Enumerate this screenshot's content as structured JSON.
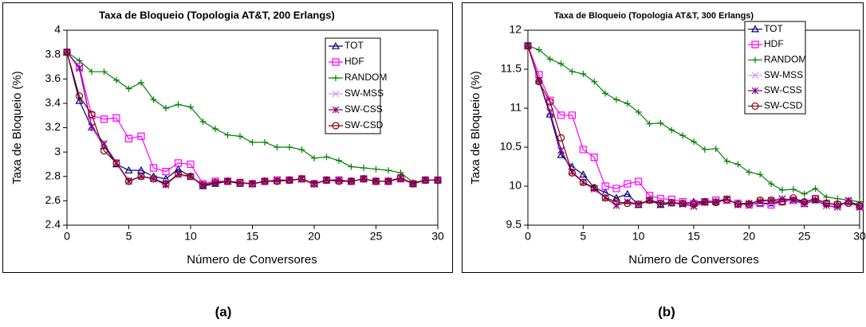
{
  "chart_data": [
    {
      "type": "line",
      "title": "Taxa de Bloqueio (Topologia AT&T, 200 Erlangs)",
      "xlabel": "Número de Conversores",
      "ylabel": "Taxa de Bloqueio (%)",
      "caption": "(a)",
      "x": [
        0,
        1,
        2,
        3,
        4,
        5,
        6,
        7,
        8,
        9,
        10,
        11,
        12,
        13,
        14,
        15,
        16,
        17,
        18,
        19,
        20,
        21,
        22,
        23,
        24,
        25,
        26,
        27,
        28,
        29,
        30
      ],
      "xlim": [
        0,
        30
      ],
      "xticks": [
        0,
        5,
        10,
        15,
        20,
        25,
        30
      ],
      "ylim": [
        2.4,
        4
      ],
      "yticks": [
        2.4,
        2.6,
        2.8,
        3,
        3.2,
        3.4,
        3.6,
        3.8,
        4
      ],
      "legend": "upper right",
      "series": [
        {
          "name": "TOT",
          "color": "#000080",
          "marker": "triangle",
          "values": [
            3.82,
            3.42,
            3.2,
            3.05,
            2.9,
            2.85,
            2.85,
            2.8,
            2.78,
            2.86,
            2.8,
            2.72,
            2.74,
            2.76,
            2.74,
            2.74,
            2.76,
            2.76,
            2.77,
            2.78,
            2.74,
            2.77,
            2.77,
            2.76,
            2.78,
            2.76,
            2.76,
            2.78,
            2.74,
            2.77,
            2.77
          ]
        },
        {
          "name": "HDF",
          "color": "#ff00ff",
          "marker": "square",
          "values": [
            3.82,
            3.7,
            3.3,
            3.27,
            3.28,
            3.11,
            3.13,
            2.87,
            2.84,
            2.91,
            2.9,
            2.74,
            2.76,
            2.76,
            2.75,
            2.74,
            2.76,
            2.77,
            2.77,
            2.78,
            2.74,
            2.77,
            2.77,
            2.76,
            2.78,
            2.76,
            2.76,
            2.78,
            2.74,
            2.77,
            2.77
          ]
        },
        {
          "name": "RANDOM",
          "color": "#008000",
          "marker": "plus",
          "values": [
            3.82,
            3.75,
            3.66,
            3.66,
            3.59,
            3.52,
            3.57,
            3.43,
            3.36,
            3.39,
            3.37,
            3.25,
            3.19,
            3.14,
            3.13,
            3.08,
            3.08,
            3.04,
            3.04,
            3.02,
            2.95,
            2.96,
            2.93,
            2.88,
            2.87,
            2.86,
            2.85,
            2.83,
            2.75,
            2.77,
            2.77
          ]
        },
        {
          "name": "SW-MSS",
          "color": "#cc99ff",
          "marker": "x",
          "values": [
            3.82,
            3.68,
            3.2,
            3.06,
            2.92,
            2.77,
            2.8,
            2.79,
            2.74,
            2.81,
            2.79,
            2.73,
            2.75,
            2.76,
            2.75,
            2.73,
            2.76,
            2.76,
            2.77,
            2.77,
            2.73,
            2.77,
            2.76,
            2.76,
            2.78,
            2.76,
            2.76,
            2.79,
            2.74,
            2.77,
            2.77
          ]
        },
        {
          "name": "SW-CSS",
          "color": "#800080",
          "marker": "star",
          "values": [
            3.82,
            3.69,
            3.21,
            3.07,
            2.91,
            2.76,
            2.8,
            2.78,
            2.73,
            2.82,
            2.8,
            2.73,
            2.75,
            2.76,
            2.75,
            2.74,
            2.76,
            2.77,
            2.77,
            2.78,
            2.74,
            2.77,
            2.77,
            2.76,
            2.78,
            2.76,
            2.76,
            2.79,
            2.74,
            2.77,
            2.77
          ]
        },
        {
          "name": "SW-CSD",
          "color": "#800000",
          "marker": "circle",
          "values": [
            3.82,
            3.46,
            3.31,
            3.01,
            2.91,
            2.76,
            2.8,
            2.78,
            2.74,
            2.82,
            2.8,
            2.73,
            2.75,
            2.76,
            2.75,
            2.74,
            2.76,
            2.76,
            2.77,
            2.78,
            2.74,
            2.77,
            2.76,
            2.76,
            2.78,
            2.76,
            2.76,
            2.79,
            2.74,
            2.77,
            2.77
          ]
        }
      ]
    },
    {
      "type": "line",
      "title": "Taxa de Bloqueio (Topologia AT&T, 300 Erlangs)",
      "xlabel": "Número de Conversores",
      "ylabel": "Taxa de Bloqueio (%)",
      "caption": "(b)",
      "x": [
        0,
        1,
        2,
        3,
        4,
        5,
        6,
        7,
        8,
        9,
        10,
        11,
        12,
        13,
        14,
        15,
        16,
        17,
        18,
        19,
        20,
        21,
        22,
        23,
        24,
        25,
        26,
        27,
        28,
        29,
        30
      ],
      "xlim": [
        0,
        30
      ],
      "xticks": [
        0,
        5,
        10,
        15,
        20,
        25,
        30
      ],
      "ylim": [
        9.5,
        12
      ],
      "yticks": [
        9.5,
        10,
        10.5,
        11,
        11.5,
        12
      ],
      "legend": "upper right",
      "series": [
        {
          "name": "TOT",
          "color": "#000080",
          "marker": "triangle",
          "values": [
            11.8,
            11.35,
            10.92,
            10.4,
            10.25,
            10.15,
            9.98,
            9.92,
            9.85,
            9.9,
            9.76,
            9.82,
            9.76,
            9.78,
            9.78,
            9.8,
            9.8,
            9.8,
            9.82,
            9.78,
            9.78,
            9.78,
            9.78,
            9.8,
            9.82,
            9.8,
            9.82,
            9.78,
            9.76,
            9.8,
            9.76
          ]
        },
        {
          "name": "HDF",
          "color": "#ff00ff",
          "marker": "square",
          "values": [
            11.8,
            11.43,
            11.1,
            10.91,
            10.91,
            10.47,
            10.37,
            10.0,
            9.97,
            10.03,
            10.06,
            9.88,
            9.84,
            9.83,
            9.8,
            9.78,
            9.8,
            9.82,
            9.82,
            9.78,
            9.76,
            9.78,
            9.76,
            9.8,
            9.82,
            9.78,
            9.84,
            9.78,
            9.76,
            9.8,
            9.74
          ]
        },
        {
          "name": "RANDOM",
          "color": "#008000",
          "marker": "plus",
          "values": [
            11.8,
            11.75,
            11.63,
            11.57,
            11.47,
            11.44,
            11.34,
            11.19,
            11.11,
            11.06,
            10.95,
            10.8,
            10.81,
            10.72,
            10.65,
            10.57,
            10.47,
            10.48,
            10.32,
            10.28,
            10.18,
            10.15,
            10.03,
            9.95,
            9.96,
            9.9,
            9.97,
            9.86,
            9.84,
            9.82,
            9.8
          ]
        },
        {
          "name": "SW-MSS",
          "color": "#cc99ff",
          "marker": "x",
          "values": [
            11.8,
            11.35,
            10.96,
            10.47,
            10.2,
            10.05,
            9.95,
            9.86,
            9.77,
            9.8,
            9.78,
            9.82,
            9.8,
            9.78,
            9.76,
            9.75,
            9.79,
            9.81,
            9.83,
            9.77,
            9.77,
            9.8,
            9.79,
            9.83,
            9.8,
            9.79,
            9.82,
            9.78,
            9.74,
            9.8,
            9.74
          ]
        },
        {
          "name": "SW-CSS",
          "color": "#800080",
          "marker": "star",
          "values": [
            11.8,
            11.36,
            10.95,
            10.46,
            10.18,
            10.05,
            9.97,
            9.85,
            9.75,
            9.8,
            9.77,
            9.82,
            9.78,
            9.79,
            9.77,
            9.74,
            9.79,
            9.8,
            9.84,
            9.76,
            9.78,
            9.81,
            9.82,
            9.84,
            9.82,
            9.77,
            9.82,
            9.75,
            9.73,
            9.82,
            9.73
          ]
        },
        {
          "name": "SW-CSD",
          "color": "#800000",
          "marker": "circle",
          "values": [
            11.8,
            11.34,
            11.08,
            10.62,
            10.17,
            10.05,
            9.98,
            9.85,
            9.8,
            9.78,
            9.77,
            9.82,
            9.78,
            9.79,
            9.78,
            9.77,
            9.8,
            9.79,
            9.83,
            9.77,
            9.77,
            9.82,
            9.82,
            9.8,
            9.85,
            9.8,
            9.84,
            9.78,
            9.77,
            9.78,
            9.75
          ]
        }
      ]
    }
  ]
}
